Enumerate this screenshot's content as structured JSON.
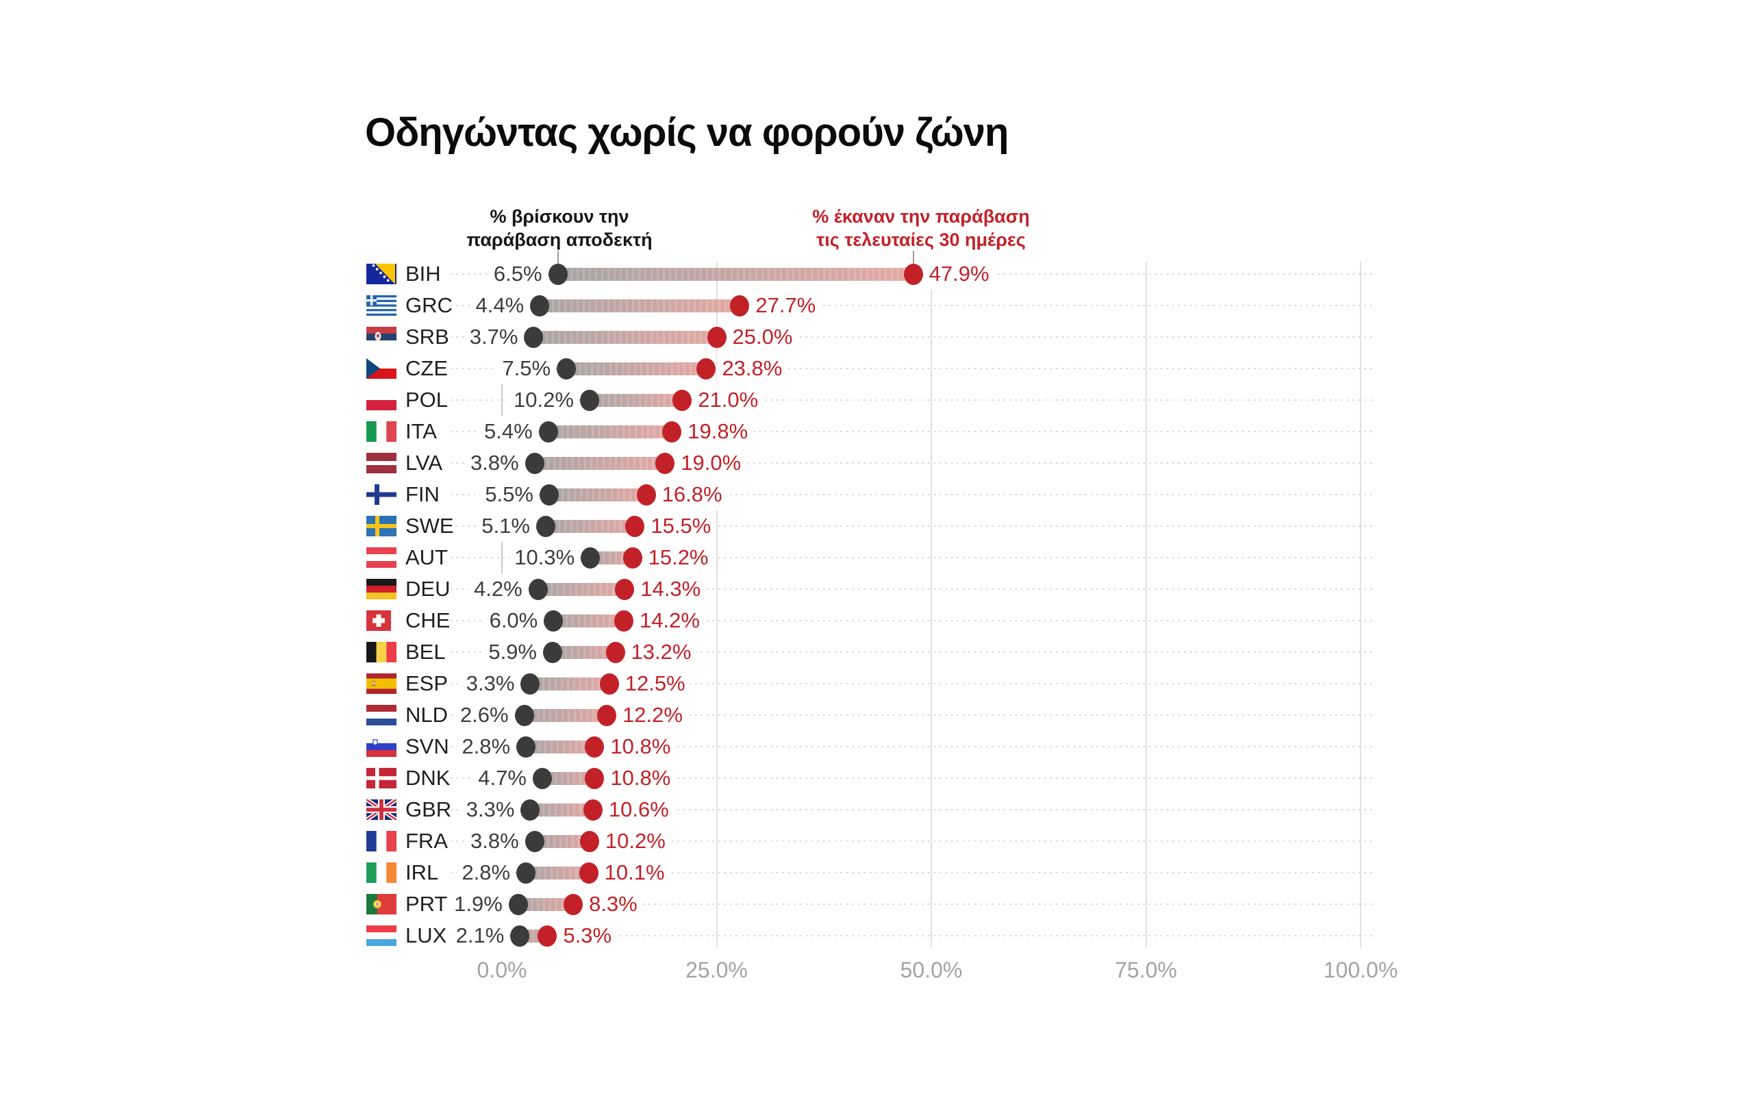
{
  "title": "Οδηγώντας χωρίς να φορούν ζώνη",
  "legend": {
    "acceptable_lines": [
      "% βρίσκουν την",
      "παράβαση αποδεκτή"
    ],
    "violation_lines": [
      "% έκαναν την παράβαση",
      "τις τελευταίες 30 ημέρες"
    ]
  },
  "colors": {
    "accent_red": "#c32128",
    "dot_gray": "#3b3b3b",
    "bar_gradient_start": "#a9a5a5",
    "bar_gradient_end": "#e4a8a4",
    "gridline": "#e1e1e1",
    "axis_text": "#a3a3a3"
  },
  "chart_data": {
    "type": "dumbbell",
    "orientation": "horizontal",
    "title": "Οδηγώντας χωρίς να φορούν ζώνη",
    "categories": [
      "BIH",
      "GRC",
      "SRB",
      "CZE",
      "POL",
      "ITA",
      "LVA",
      "FIN",
      "SWE",
      "AUT",
      "DEU",
      "CHE",
      "BEL",
      "ESP",
      "NLD",
      "SVN",
      "DNK",
      "GBR",
      "FRA",
      "IRL",
      "PRT",
      "LUX"
    ],
    "flag_icons": [
      "bih-flag-icon",
      "grc-flag-icon",
      "srb-flag-icon",
      "cze-flag-icon",
      "pol-flag-icon",
      "ita-flag-icon",
      "lva-flag-icon",
      "fin-flag-icon",
      "swe-flag-icon",
      "aut-flag-icon",
      "deu-flag-icon",
      "che-flag-icon",
      "bel-flag-icon",
      "esp-flag-icon",
      "nld-flag-icon",
      "svn-flag-icon",
      "dnk-flag-icon",
      "gbr-flag-icon",
      "fra-flag-icon",
      "irl-flag-icon",
      "prt-flag-icon",
      "lux-flag-icon"
    ],
    "series": [
      {
        "name": "% βρίσκουν την παράβαση αποδεκτή",
        "color": "#3b3b3b",
        "values": [
          6.5,
          4.4,
          3.7,
          7.5,
          10.2,
          5.4,
          3.8,
          5.5,
          5.1,
          10.3,
          4.2,
          6.0,
          5.9,
          3.3,
          2.6,
          2.8,
          4.7,
          3.3,
          3.8,
          2.8,
          1.9,
          2.1
        ]
      },
      {
        "name": "% έκαναν την παράβαση τις τελευταίες 30 ημέρες",
        "color": "#c32128",
        "values": [
          47.9,
          27.7,
          25.0,
          23.8,
          21.0,
          19.8,
          19.0,
          16.8,
          15.5,
          15.2,
          14.3,
          14.2,
          13.2,
          12.5,
          12.2,
          10.8,
          10.8,
          10.6,
          10.2,
          10.1,
          8.3,
          5.3
        ]
      }
    ],
    "x_axis": {
      "min": 0,
      "max": 100,
      "tick_values": [
        0,
        25,
        50,
        75,
        100
      ],
      "tick_labels": [
        "0.0%",
        "25.0%",
        "50.0%",
        "75.0%",
        "100.0%"
      ],
      "gridlines": true
    },
    "value_label_format": "one_decimal_percent"
  }
}
